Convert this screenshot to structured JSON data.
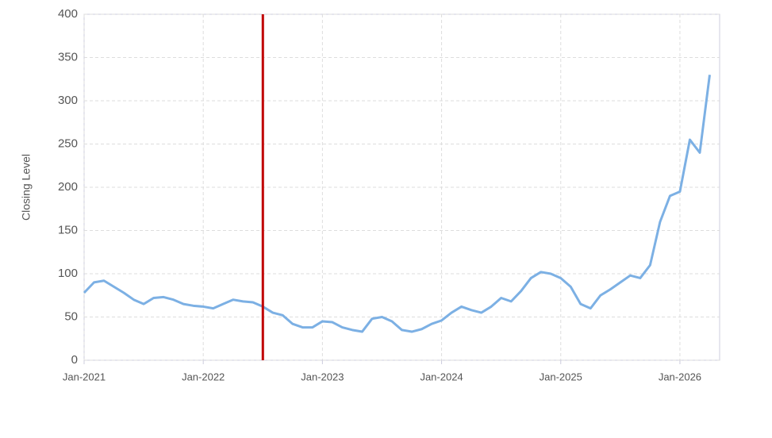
{
  "chart_data": {
    "type": "line",
    "y_label": "Closing Level",
    "x": [
      "Jan-2021",
      "Feb-2021",
      "Mar-2021",
      "Apr-2021",
      "May-2021",
      "Jun-2021",
      "Jul-2021",
      "Aug-2021",
      "Sep-2021",
      "Oct-2021",
      "Nov-2021",
      "Dec-2021",
      "Jan-2022",
      "Feb-2022",
      "Mar-2022",
      "Apr-2022",
      "May-2022",
      "Jun-2022",
      "Jul-2022",
      "Aug-2022",
      "Sep-2022",
      "Oct-2022",
      "Nov-2022",
      "Dec-2022",
      "Jan-2023",
      "Feb-2023",
      "Mar-2023",
      "Apr-2023",
      "May-2023",
      "Jun-2023",
      "Jul-2023",
      "Aug-2023",
      "Sep-2023",
      "Oct-2023",
      "Nov-2023",
      "Dec-2023",
      "Jan-2024",
      "Feb-2024",
      "Mar-2024",
      "Apr-2024",
      "May-2024",
      "Jun-2024",
      "Jul-2024",
      "Aug-2024",
      "Sep-2024",
      "Oct-2024",
      "Nov-2024",
      "Dec-2024",
      "Jan-2025",
      "Feb-2025",
      "Mar-2025",
      "Apr-2025",
      "May-2025",
      "Jun-2025",
      "Jul-2025",
      "Aug-2025",
      "Sep-2025",
      "Oct-2025",
      "Nov-2025",
      "Dec-2025",
      "Jan-2026",
      "Feb-2026",
      "Mar-2026",
      "Apr-2026"
    ],
    "series": [
      {
        "color": "#7cb0e4",
        "values": [
          78,
          90,
          92,
          85,
          78,
          70,
          65,
          72,
          73,
          70,
          65,
          63,
          62,
          60,
          65,
          70,
          68,
          67,
          62,
          55,
          52,
          42,
          38,
          38,
          45,
          44,
          38,
          35,
          33,
          48,
          50,
          45,
          35,
          33,
          36,
          42,
          46,
          55,
          62,
          58,
          55,
          62,
          72,
          68,
          80,
          95,
          102,
          100,
          95,
          85,
          65,
          60,
          75,
          82,
          90,
          98,
          95,
          110,
          160,
          190,
          195,
          255,
          240,
          330
        ]
      }
    ],
    "xlim": [
      "Jan-2021",
      "May-2026"
    ],
    "xticks": [
      "Jan-2021",
      "Jan-2022",
      "Jan-2023",
      "Jan-2024",
      "Jan-2025",
      "Jan-2026"
    ],
    "ylim": [
      0,
      400
    ],
    "yticks": [
      0,
      50,
      100,
      150,
      200,
      250,
      300,
      350,
      400
    ],
    "grid": true,
    "marker_x": "Jul-2022",
    "marker_color": "#c00000"
  }
}
